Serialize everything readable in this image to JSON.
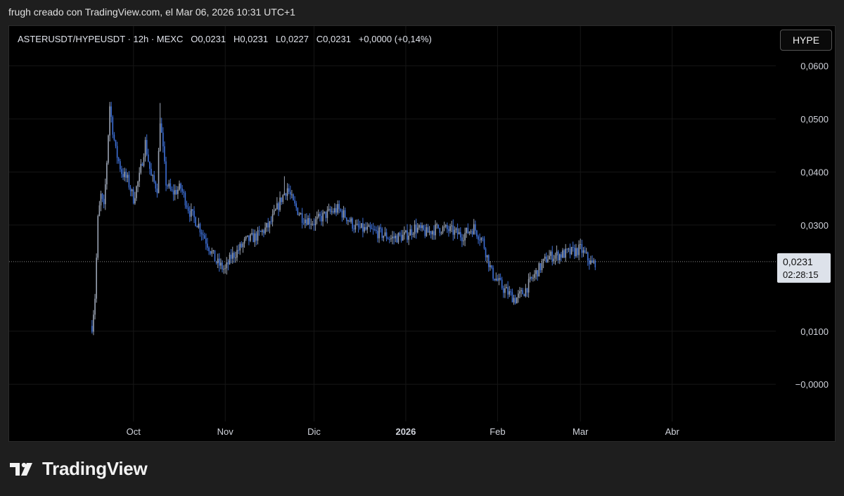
{
  "caption": "frugh creado con TradingView.com, el Mar 06, 2026 10:31 UTC+1",
  "legend": {
    "symbol": "ASTERUSDT/HYPEUSDT",
    "sep1": "·",
    "interval": "12h",
    "sep2": "·",
    "exchange": "MEXC",
    "o_label": "O",
    "o_value": "0,0231",
    "h_label": "H",
    "h_value": "0,0231",
    "l_label": "L",
    "l_value": "0,0227",
    "c_label": "C",
    "c_value": "0,0231",
    "change": "+0,0000 (+0,14%)"
  },
  "symbol_button": "HYPE",
  "price_label": {
    "price": "0,0231",
    "countdown": "02:28:15"
  },
  "brand": {
    "name": "TradingView"
  },
  "colors": {
    "up": "#9aa3b3",
    "down": "#3d6fd6",
    "background": "#000000",
    "grid": "#161616"
  },
  "chart_data": {
    "type": "candlestick",
    "x_tick_labels": [
      "Oct",
      "Nov",
      "Dic",
      "2026",
      "Feb",
      "Mar",
      "Abr"
    ],
    "y_tick_labels": [
      "0,0600",
      "0,0500",
      "0,0400",
      "0,0300",
      "0,0100",
      "−0,0000"
    ],
    "y_ticks": [
      0.06,
      0.05,
      0.04,
      0.03,
      0.01,
      0.0
    ],
    "ylim": [
      -0.007,
      0.0675
    ],
    "x_range": [
      "2025-08-20",
      "2026-05-06"
    ],
    "last_price": 0.0231,
    "path": [
      [
        "2025-09-17",
        0.011
      ],
      [
        "2025-09-18",
        0.0165
      ],
      [
        "2025-09-19",
        0.031
      ],
      [
        "2025-09-20",
        0.0355
      ],
      [
        "2025-09-21",
        0.033
      ],
      [
        "2025-09-22",
        0.042
      ],
      [
        "2025-09-23",
        0.0525
      ],
      [
        "2025-09-24",
        0.048
      ],
      [
        "2025-09-25",
        0.044
      ],
      [
        "2025-09-27",
        0.04
      ],
      [
        "2025-09-29",
        0.0385
      ],
      [
        "2025-10-01",
        0.035
      ],
      [
        "2025-10-03",
        0.039
      ],
      [
        "2025-10-05",
        0.0455
      ],
      [
        "2025-10-07",
        0.039
      ],
      [
        "2025-10-09",
        0.037
      ],
      [
        "2025-10-10",
        0.05
      ],
      [
        "2025-10-12",
        0.038
      ],
      [
        "2025-10-14",
        0.036
      ],
      [
        "2025-10-17",
        0.037
      ],
      [
        "2025-10-20",
        0.0325
      ],
      [
        "2025-10-23",
        0.03
      ],
      [
        "2025-10-26",
        0.0265
      ],
      [
        "2025-10-29",
        0.023
      ],
      [
        "2025-11-01",
        0.0215
      ],
      [
        "2025-11-03",
        0.024
      ],
      [
        "2025-11-05",
        0.025
      ],
      [
        "2025-11-08",
        0.027
      ],
      [
        "2025-11-12",
        0.028
      ],
      [
        "2025-11-16",
        0.03
      ],
      [
        "2025-11-20",
        0.035
      ],
      [
        "2025-11-22",
        0.037
      ],
      [
        "2025-11-24",
        0.034
      ],
      [
        "2025-11-27",
        0.0315
      ],
      [
        "2025-12-01",
        0.0305
      ],
      [
        "2025-12-05",
        0.032
      ],
      [
        "2025-12-09",
        0.033
      ],
      [
        "2025-12-12",
        0.0315
      ],
      [
        "2025-12-15",
        0.0295
      ],
      [
        "2025-12-19",
        0.029
      ],
      [
        "2025-12-23",
        0.0285
      ],
      [
        "2025-12-27",
        0.0275
      ],
      [
        "2026-01-01",
        0.028
      ],
      [
        "2026-01-04",
        0.0295
      ],
      [
        "2026-01-08",
        0.0285
      ],
      [
        "2026-01-12",
        0.0295
      ],
      [
        "2026-01-16",
        0.029
      ],
      [
        "2026-01-20",
        0.028
      ],
      [
        "2026-01-24",
        0.0295
      ],
      [
        "2026-01-27",
        0.027
      ],
      [
        "2026-01-30",
        0.021
      ],
      [
        "2026-02-03",
        0.018
      ],
      [
        "2026-02-07",
        0.016
      ],
      [
        "2026-02-10",
        0.0175
      ],
      [
        "2026-02-14",
        0.021
      ],
      [
        "2026-02-18",
        0.024
      ],
      [
        "2026-02-23",
        0.0245
      ],
      [
        "2026-02-27",
        0.025
      ],
      [
        "2026-03-01",
        0.0255
      ],
      [
        "2026-03-03",
        0.024
      ],
      [
        "2026-03-05",
        0.0225
      ],
      [
        "2026-03-06",
        0.0231
      ]
    ]
  }
}
